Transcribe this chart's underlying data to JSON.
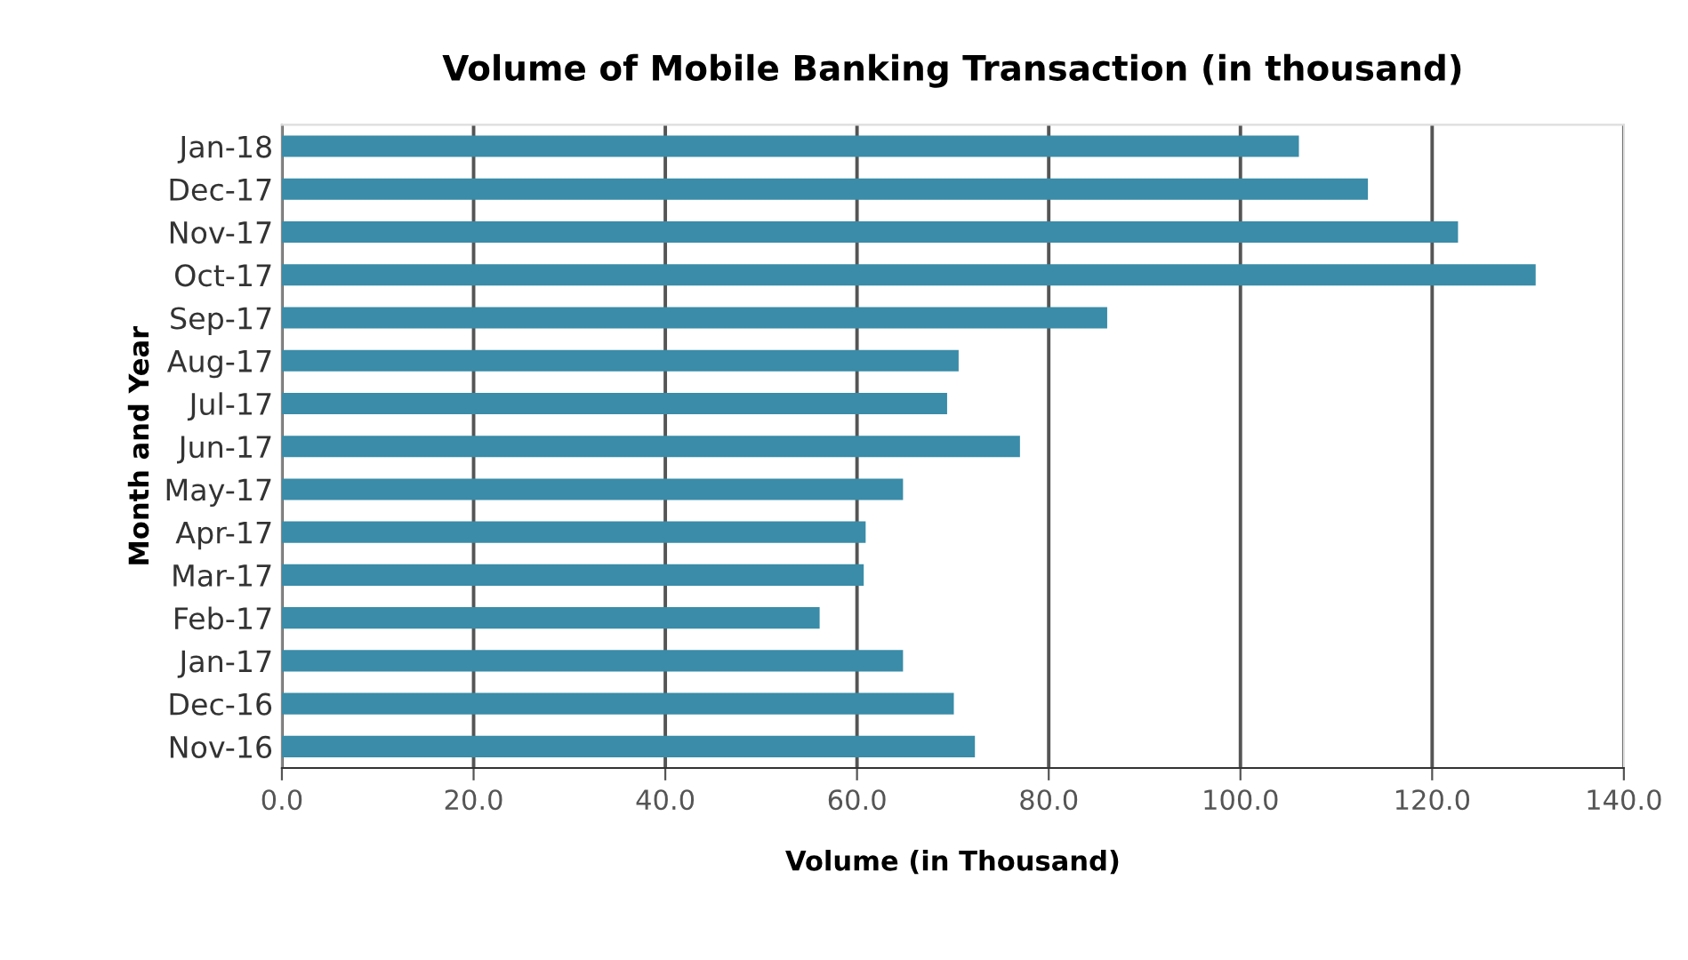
{
  "chart_data": {
    "type": "bar",
    "orientation": "horizontal",
    "title": "Volume of Mobile Banking Transaction (in thousand)",
    "xlabel": "Volume (in Thousand)",
    "ylabel": "Month and Year",
    "categories": [
      "Jan-18",
      "Dec-17",
      "Nov-17",
      "Oct-17",
      "Sep-17",
      "Aug-17",
      "Jul-17",
      "Jun-17",
      "May-17",
      "Apr-17",
      "Mar-17",
      "Feb-17",
      "Jan-17",
      "Dec-16",
      "Nov-16"
    ],
    "values": [
      106.1,
      113.3,
      122.7,
      130.8,
      86.1,
      70.6,
      69.4,
      77.0,
      64.8,
      60.9,
      60.7,
      56.1,
      64.8,
      70.1,
      72.3
    ],
    "color": "#3a8ca8",
    "xlim": [
      0,
      140
    ],
    "xticks": [
      {
        "value": 0,
        "label": "0.0"
      },
      {
        "value": 20,
        "label": "20.0"
      },
      {
        "value": 40,
        "label": "40.0"
      },
      {
        "value": 60,
        "label": "60.0"
      },
      {
        "value": 80,
        "label": "80.0"
      },
      {
        "value": 100,
        "label": "100.0"
      },
      {
        "value": 120,
        "label": "120.0"
      },
      {
        "value": 140,
        "label": "140.0"
      }
    ],
    "grid": "x"
  }
}
